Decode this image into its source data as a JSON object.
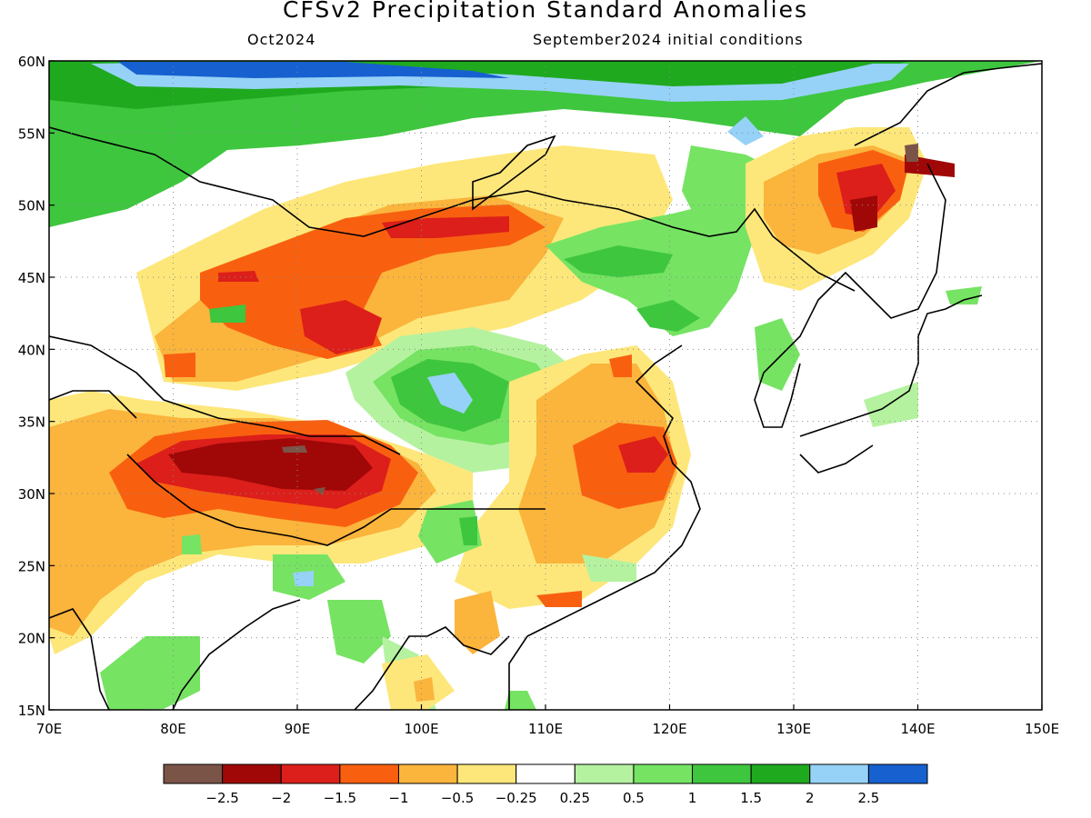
{
  "title": "CFSv2 Precipitation Standard Anomalies",
  "subtitle_left": "Oct2024",
  "subtitle_right": "September2024 initial conditions",
  "map": {
    "lon_range": [
      70,
      150
    ],
    "lat_range": [
      15,
      60
    ],
    "lon_ticks": [
      "70E",
      "80E",
      "90E",
      "100E",
      "110E",
      "120E",
      "130E",
      "140E",
      "150E"
    ],
    "lat_ticks": [
      "60N",
      "55N",
      "50N",
      "45N",
      "40N",
      "35N",
      "30N",
      "25N",
      "20N",
      "15N"
    ],
    "grid": true
  },
  "colorbar": {
    "colors": [
      "#7b5448",
      "#a00808",
      "#dc1f1a",
      "#f86010",
      "#fbb43c",
      "#fde77a",
      "#ffffff",
      "#b5f2a0",
      "#76e363",
      "#3ec63e",
      "#1fa91f",
      "#96d2f7",
      "#1760d0"
    ],
    "labels": [
      "−2.5",
      "−2",
      "−1.5",
      "−1",
      "−0.5",
      "−0.25",
      "0.25",
      "0.5",
      "1",
      "1.5",
      "2",
      "2.5"
    ]
  },
  "regions": [
    {
      "category": "green",
      "lon": 78,
      "lat": 53,
      "rx": 8,
      "ry": 4
    },
    {
      "category": "green",
      "lon": 95,
      "lat": 57,
      "rx": 18,
      "ry": 3
    },
    {
      "category": "blue",
      "lon": 84,
      "lat": 59.3,
      "rx": 10,
      "ry": 0.8
    },
    {
      "category": "blue",
      "lon": 124,
      "lat": 58.5,
      "rx": 6,
      "ry": 1.3
    },
    {
      "category": "orange",
      "lon": 95,
      "lat": 44,
      "rx": 10,
      "ry": 2.2
    },
    {
      "category": "red",
      "lon": 93,
      "lat": 41.5,
      "rx": 4,
      "ry": 1.3
    },
    {
      "category": "red",
      "lon": 98,
      "lat": 47.5,
      "rx": 7,
      "ry": 1.2
    },
    {
      "category": "green",
      "lon": 120,
      "lat": 46,
      "rx": 6,
      "ry": 3
    },
    {
      "category": "green",
      "lon": 102,
      "lat": 38,
      "rx": 6,
      "ry": 3
    },
    {
      "category": "blue",
      "lon": 102,
      "lat": 37.5,
      "rx": 2,
      "ry": 1
    },
    {
      "category": "darkred",
      "lon": 90,
      "lat": 32,
      "rx": 7,
      "ry": 2
    },
    {
      "category": "orange",
      "lon": 88,
      "lat": 30,
      "rx": 10,
      "ry": 3
    },
    {
      "category": "orange",
      "lon": 117,
      "lat": 31.5,
      "rx": 5,
      "ry": 2.5
    },
    {
      "category": "red",
      "lon": 120,
      "lat": 32,
      "rx": 2,
      "ry": 1
    },
    {
      "category": "red",
      "lon": 135,
      "lat": 49,
      "rx": 3,
      "ry": 2
    },
    {
      "category": "darkred",
      "lon": 140,
      "lat": 52.5,
      "rx": 2,
      "ry": 0.6
    },
    {
      "category": "green",
      "lon": 80,
      "lat": 16.5,
      "rx": 4,
      "ry": 1.5
    },
    {
      "category": "green",
      "lon": 94,
      "lat": 22,
      "rx": 3,
      "ry": 1.5
    }
  ]
}
